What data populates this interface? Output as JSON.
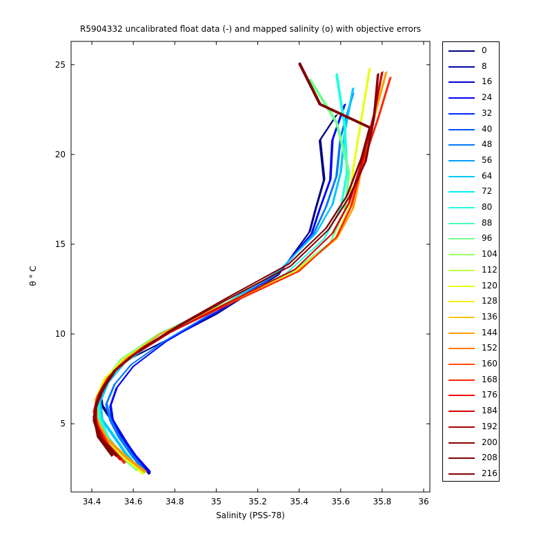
{
  "chart_data": {
    "type": "line",
    "title": "R5904332 uncalibrated float data (-) and mapped salinity (o) with objective errors",
    "xlabel": "Salinity (PSS-78)",
    "ylabel": "θ ° C",
    "xlim": [
      34.3,
      36.03
    ],
    "ylim": [
      1.2,
      26.3
    ],
    "x_ticks": [
      "34.4",
      "34.6",
      "34.8",
      "35",
      "35.2",
      "35.4",
      "35.6",
      "35.8",
      "36"
    ],
    "y_ticks": [
      "5",
      "10",
      "15",
      "20",
      "25"
    ],
    "grid": false,
    "legend_position": "right-outside",
    "colormap": "jet",
    "legend": [
      {
        "label": "0",
        "color": "#000080"
      },
      {
        "label": "8",
        "color": "#0000a8"
      },
      {
        "label": "16",
        "color": "#0000d1"
      },
      {
        "label": "24",
        "color": "#0000fa"
      },
      {
        "label": "32",
        "color": "#0028ff"
      },
      {
        "label": "40",
        "color": "#0050ff"
      },
      {
        "label": "48",
        "color": "#0078ff"
      },
      {
        "label": "56",
        "color": "#00a0ff"
      },
      {
        "label": "64",
        "color": "#00c8ff"
      },
      {
        "label": "72",
        "color": "#00f0f8"
      },
      {
        "label": "80",
        "color": "#1fffdf"
      },
      {
        "label": "88",
        "color": "#47ffb7"
      },
      {
        "label": "96",
        "color": "#6fff8f"
      },
      {
        "label": "104",
        "color": "#97ff67"
      },
      {
        "label": "112",
        "color": "#bfff3f"
      },
      {
        "label": "120",
        "color": "#e7ff17"
      },
      {
        "label": "128",
        "color": "#ffeb00"
      },
      {
        "label": "136",
        "color": "#ffc400"
      },
      {
        "label": "144",
        "color": "#ff9c00"
      },
      {
        "label": "152",
        "color": "#ff7400"
      },
      {
        "label": "160",
        "color": "#ff4c00"
      },
      {
        "label": "168",
        "color": "#ff2400"
      },
      {
        "label": "176",
        "color": "#fb0000"
      },
      {
        "label": "184",
        "color": "#d30000"
      },
      {
        "label": "192",
        "color": "#ab0000"
      },
      {
        "label": "200",
        "color": "#830000"
      },
      {
        "label": "208",
        "color": "#800000"
      },
      {
        "label": "216",
        "color": "#800000"
      }
    ],
    "series": [
      {
        "label": "0",
        "x": [
          34.68,
          34.6,
          34.52,
          34.45,
          34.44,
          34.49,
          34.58,
          34.75,
          35.0,
          35.3,
          35.45,
          35.48,
          35.52,
          35.5,
          35.58
        ],
        "y": [
          2.2,
          3.3,
          4.8,
          6.0,
          6.8,
          7.8,
          8.6,
          9.6,
          11.1,
          13.3,
          15.7,
          17.0,
          18.6,
          20.8,
          22.2
        ]
      },
      {
        "label": "24",
        "x": [
          34.68,
          34.61,
          34.55,
          34.5,
          34.49,
          34.52,
          34.6,
          34.76,
          35.0,
          35.3,
          35.46,
          35.5,
          35.55,
          35.56,
          35.62
        ],
        "y": [
          2.3,
          3.2,
          4.2,
          5.2,
          6.0,
          7.0,
          8.2,
          9.6,
          11.2,
          13.4,
          15.6,
          17.0,
          18.6,
          20.8,
          22.8
        ]
      },
      {
        "label": "48",
        "x": [
          34.66,
          34.59,
          34.53,
          34.49,
          34.47,
          34.51,
          34.59,
          34.75,
          35.0,
          35.3,
          35.47,
          35.53,
          35.58,
          35.6,
          35.66
        ],
        "y": [
          2.3,
          3.3,
          4.3,
          5.2,
          6.1,
          7.2,
          8.3,
          9.6,
          11.3,
          13.4,
          15.6,
          17.1,
          18.8,
          21.0,
          23.4
        ]
      },
      {
        "label": "64",
        "x": [
          34.63,
          34.56,
          34.5,
          34.45,
          34.44,
          34.48,
          34.56,
          34.73,
          35.0,
          35.3,
          35.48,
          35.56,
          35.6,
          35.62,
          35.66
        ],
        "y": [
          2.4,
          3.4,
          4.4,
          5.2,
          6.2,
          7.3,
          8.4,
          9.8,
          11.4,
          13.5,
          15.6,
          17.2,
          19.0,
          21.3,
          23.7
        ]
      },
      {
        "label": "80",
        "x": [
          34.64,
          34.55,
          34.48,
          34.44,
          34.43,
          34.47,
          34.56,
          34.74,
          35.02,
          35.34,
          35.52,
          35.6,
          35.63,
          35.62,
          35.58
        ],
        "y": [
          2.3,
          3.2,
          4.2,
          5.3,
          6.3,
          7.4,
          8.5,
          9.9,
          11.5,
          13.4,
          15.3,
          17.0,
          19.0,
          21.5,
          24.5
        ]
      },
      {
        "label": "96",
        "x": [
          34.62,
          34.54,
          34.47,
          34.43,
          34.42,
          34.46,
          34.54,
          34.72,
          35.02,
          35.36,
          35.55,
          35.62,
          35.64,
          35.58,
          35.45
        ],
        "y": [
          2.4,
          3.2,
          4.2,
          5.2,
          6.3,
          7.4,
          8.6,
          10.0,
          11.6,
          13.4,
          15.1,
          16.9,
          19.0,
          21.8,
          24.2
        ]
      },
      {
        "label": "120",
        "x": [
          34.65,
          34.55,
          34.47,
          34.42,
          34.42,
          34.46,
          34.55,
          34.73,
          35.03,
          35.37,
          35.57,
          35.64,
          35.66,
          35.7,
          35.74
        ],
        "y": [
          2.2,
          3.2,
          4.2,
          5.3,
          6.4,
          7.5,
          8.6,
          10.0,
          11.6,
          13.4,
          15.2,
          17.0,
          19.2,
          22.0,
          24.8
        ]
      },
      {
        "label": "144",
        "x": [
          34.66,
          34.56,
          34.47,
          34.42,
          34.42,
          34.47,
          34.56,
          34.73,
          35.03,
          35.38,
          35.58,
          35.66,
          35.7,
          35.76,
          35.82
        ],
        "y": [
          2.3,
          3.2,
          4.2,
          5.3,
          6.4,
          7.5,
          8.6,
          10.0,
          11.6,
          13.4,
          15.3,
          17.0,
          19.2,
          22.0,
          24.6
        ]
      },
      {
        "label": "168",
        "x": [
          34.56,
          34.48,
          34.43,
          34.41,
          34.43,
          34.48,
          34.58,
          34.76,
          35.05,
          35.4,
          35.58,
          35.65,
          35.7,
          35.78,
          35.84
        ],
        "y": [
          2.8,
          3.8,
          4.8,
          5.7,
          6.6,
          7.6,
          8.7,
          10.0,
          11.6,
          13.5,
          15.4,
          17.1,
          19.3,
          22.0,
          24.3
        ]
      },
      {
        "label": "184",
        "x": [
          34.54,
          34.46,
          34.42,
          34.42,
          34.45,
          34.5,
          34.6,
          34.78,
          35.05,
          35.38,
          35.56,
          35.64,
          35.7,
          35.76,
          35.8
        ],
        "y": [
          3.0,
          4.0,
          5.0,
          5.9,
          6.8,
          7.8,
          8.8,
          10.1,
          11.7,
          13.6,
          15.6,
          17.3,
          19.5,
          22.2,
          24.6
        ]
      },
      {
        "label": "200",
        "x": [
          34.52,
          34.44,
          34.41,
          34.42,
          34.45,
          34.51,
          34.62,
          34.8,
          35.05,
          35.36,
          35.54,
          35.64,
          35.72,
          35.76,
          35.78
        ],
        "y": [
          3.2,
          4.2,
          5.2,
          6.1,
          7.0,
          8.0,
          9.0,
          10.3,
          11.9,
          13.8,
          15.8,
          17.6,
          19.6,
          22.0,
          24.5
        ]
      },
      {
        "label": "216",
        "x": [
          34.5,
          34.43,
          34.41,
          34.43,
          34.47,
          34.53,
          34.64,
          34.82,
          35.05,
          35.35,
          35.53,
          35.63,
          35.7,
          35.74,
          35.5,
          35.4
        ],
        "y": [
          3.2,
          4.3,
          5.4,
          6.3,
          7.2,
          8.2,
          9.2,
          10.5,
          12.0,
          13.9,
          15.9,
          17.7,
          19.8,
          21.5,
          22.8,
          25.1
        ]
      }
    ]
  }
}
